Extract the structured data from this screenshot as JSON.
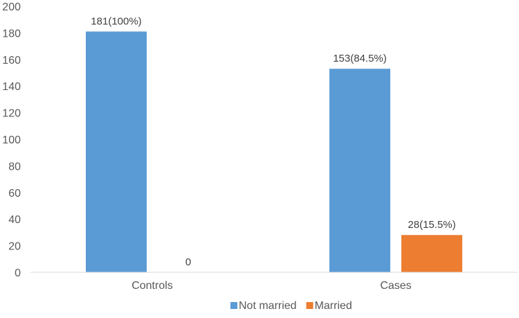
{
  "chart_data": {
    "type": "bar",
    "categories": [
      "Controls",
      "Cases"
    ],
    "series": [
      {
        "name": "Not married",
        "values": [
          181,
          153
        ],
        "labels": [
          "181(100%)",
          "153(84.5%)"
        ],
        "color": "#5b9bd5"
      },
      {
        "name": "Married",
        "values": [
          0,
          28
        ],
        "labels": [
          "0",
          "28(15.5%)"
        ],
        "color": "#ed7d31"
      }
    ],
    "ylim": [
      0,
      200
    ],
    "yticks": [
      0,
      20,
      40,
      60,
      80,
      100,
      120,
      140,
      160,
      180,
      200
    ],
    "grid": false,
    "legend_position": "bottom"
  }
}
